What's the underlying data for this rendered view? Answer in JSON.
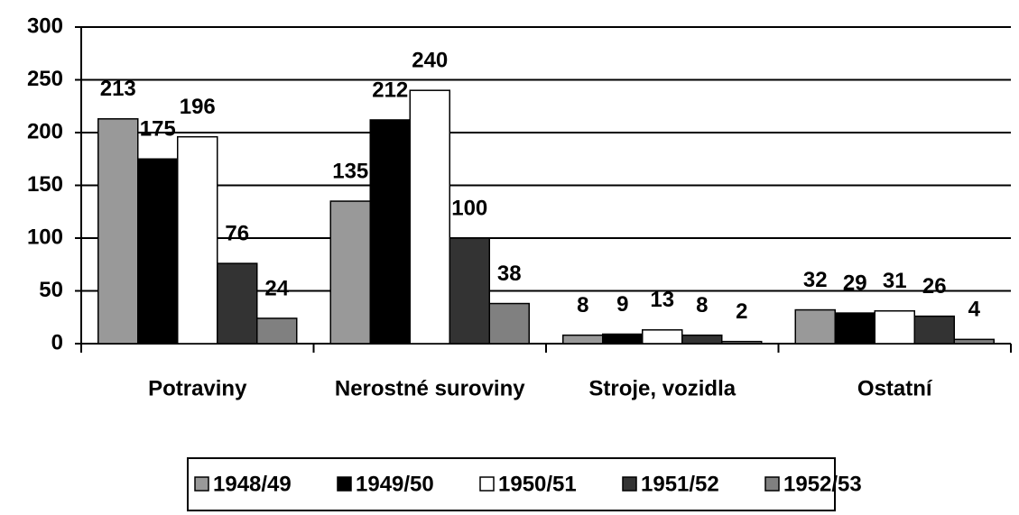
{
  "chart_data": {
    "type": "bar",
    "categories": [
      "Potraviny",
      "Nerostné suroviny",
      "Stroje, vozidla",
      "Ostatní"
    ],
    "series": [
      {
        "name": "1948/49",
        "color": "#999999",
        "values": [
          213,
          135,
          8,
          32
        ]
      },
      {
        "name": "1949/50",
        "color": "#000000",
        "values": [
          175,
          212,
          9,
          29
        ]
      },
      {
        "name": "1950/51",
        "color": "#ffffff",
        "values": [
          196,
          240,
          13,
          31
        ]
      },
      {
        "name": "1951/52",
        "color": "#333333",
        "values": [
          76,
          100,
          8,
          26
        ]
      },
      {
        "name": "1952/53",
        "color": "#808080",
        "values": [
          24,
          38,
          2,
          4
        ]
      }
    ],
    "ylim": [
      0,
      300
    ],
    "yticks": [
      0,
      50,
      100,
      150,
      200,
      250,
      300
    ],
    "grid": true,
    "legend": "bottom"
  }
}
